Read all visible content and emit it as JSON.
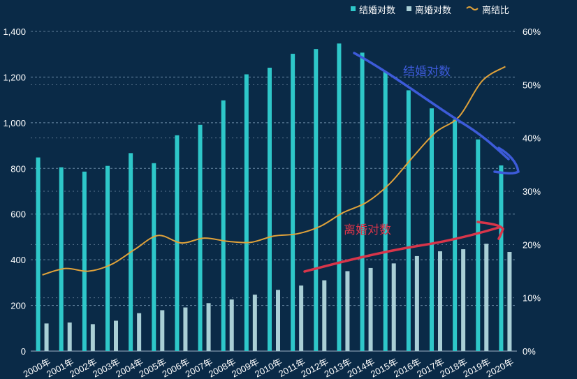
{
  "chart_data": {
    "type": "bar",
    "categories": [
      "2000年",
      "2001年",
      "2002年",
      "2003年",
      "2004年",
      "2005年",
      "2006年",
      "2007年",
      "2008年",
      "2009年",
      "2010年",
      "2011年",
      "2012年",
      "2013年",
      "2014年",
      "2015年",
      "2016年",
      "2017年",
      "2018年",
      "2019年",
      "2020年"
    ],
    "series": [
      {
        "name": "结婚对数",
        "type": "bar",
        "axis": "left",
        "color": "#2ec7c9",
        "values": [
          848,
          805,
          786,
          811,
          867,
          823,
          945,
          991,
          1098,
          1212,
          1241,
          1302,
          1323,
          1347,
          1307,
          1224,
          1142,
          1063,
          1014,
          927,
          813
        ]
      },
      {
        "name": "离婚对数",
        "type": "bar",
        "axis": "left",
        "color": "#a9cfd6",
        "values": [
          121,
          125,
          118,
          133,
          166,
          179,
          191,
          210,
          226,
          247,
          268,
          287,
          310,
          350,
          364,
          384,
          416,
          437,
          446,
          470,
          434
        ]
      },
      {
        "name": "离结比",
        "type": "line",
        "axis": "right",
        "color": "#e0a23a",
        "values": [
          14.3,
          15.5,
          15.0,
          16.3,
          19.1,
          21.7,
          20.3,
          21.2,
          20.6,
          20.4,
          21.6,
          22.0,
          23.4,
          26.0,
          27.9,
          31.4,
          36.4,
          41.1,
          44.0,
          50.7,
          53.4
        ]
      }
    ],
    "yleft": {
      "min": 0,
      "max": 1400,
      "ticks": [
        "0",
        "200",
        "400",
        "600",
        "800",
        "1,000",
        "1,200",
        "1,400"
      ]
    },
    "yright": {
      "min": 0,
      "max": 60,
      "ticks": [
        "0%",
        "10%",
        "20%",
        "30%",
        "40%",
        "50%",
        "60%"
      ]
    },
    "legend": "top-right",
    "grid": "dashed horizontal",
    "annotations": [
      {
        "text": "结婚对数",
        "color": "#3d5bd9"
      },
      {
        "text": "离婚对数",
        "color": "#d8354a"
      }
    ]
  }
}
